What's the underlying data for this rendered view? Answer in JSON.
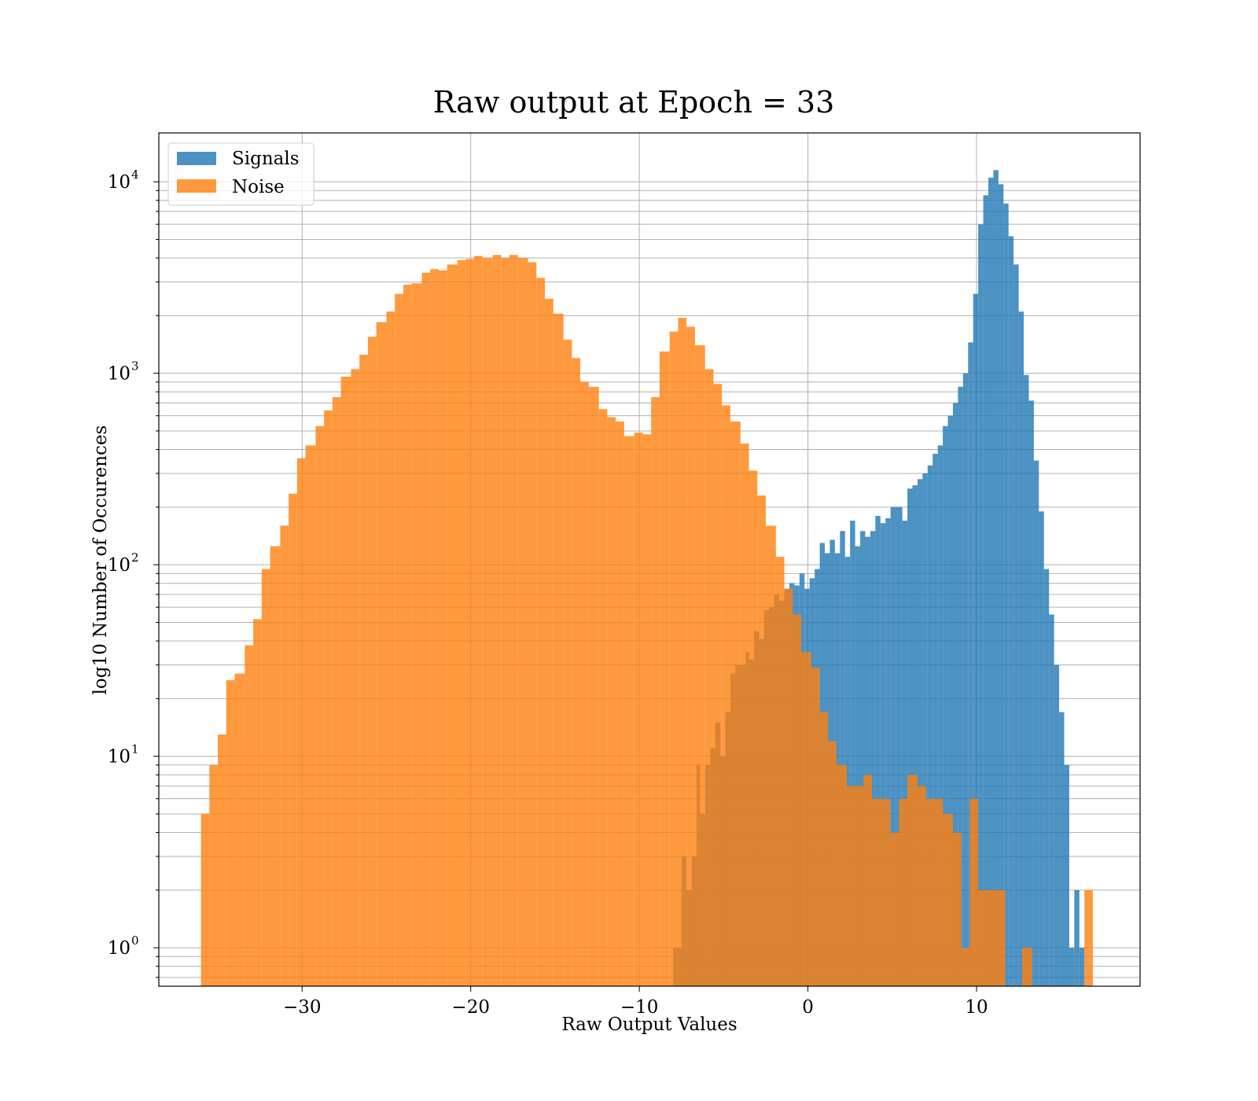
{
  "chart_data": {
    "type": "bar",
    "title": "Raw output at Epoch = 33",
    "xlabel": "Raw Output Values",
    "ylabel": "log10 Number of Occurences",
    "yscale": "log",
    "xlim": [
      -38.5,
      19.7
    ],
    "ylim": [
      0.63,
      18000
    ],
    "xticks": [
      -30,
      -20,
      -10,
      0,
      10
    ],
    "xtick_labels": [
      "−30",
      "−20",
      "−10",
      "0",
      "10"
    ],
    "yticks": [
      1,
      10,
      100,
      1000,
      10000
    ],
    "ytick_labels": [
      {
        "base": "10",
        "exp": "0"
      },
      {
        "base": "10",
        "exp": "1"
      },
      {
        "base": "10",
        "exp": "2"
      },
      {
        "base": "10",
        "exp": "3"
      },
      {
        "base": "10",
        "exp": "4"
      }
    ],
    "grid": true,
    "legend_position": "upper-left",
    "series": [
      {
        "name": "Signals",
        "color": "#1f77b4",
        "bins": [
          [
            -8.0,
            -7.5,
            1
          ],
          [
            -7.5,
            -7.2,
            3
          ],
          [
            -7.2,
            -6.9,
            2
          ],
          [
            -6.9,
            -6.6,
            3
          ],
          [
            -6.6,
            -6.4,
            9
          ],
          [
            -6.4,
            -6.1,
            5
          ],
          [
            -6.1,
            -5.8,
            9
          ],
          [
            -5.8,
            -5.5,
            11
          ],
          [
            -5.5,
            -5.2,
            15
          ],
          [
            -5.2,
            -4.9,
            10
          ],
          [
            -4.9,
            -4.6,
            17
          ],
          [
            -4.6,
            -4.3,
            27
          ],
          [
            -4.3,
            -4.0,
            30
          ],
          [
            -4.0,
            -3.7,
            30
          ],
          [
            -3.7,
            -3.5,
            35
          ],
          [
            -3.5,
            -3.2,
            32
          ],
          [
            -3.2,
            -2.9,
            45
          ],
          [
            -2.9,
            -2.6,
            41
          ],
          [
            -2.6,
            -2.3,
            58
          ],
          [
            -2.3,
            -2.0,
            60
          ],
          [
            -2.0,
            -1.7,
            70
          ],
          [
            -1.7,
            -1.4,
            65
          ],
          [
            -1.4,
            -1.1,
            75
          ],
          [
            -1.1,
            -0.8,
            80
          ],
          [
            -0.8,
            -0.5,
            78
          ],
          [
            -0.5,
            -0.2,
            90
          ],
          [
            -0.2,
            0.1,
            75
          ],
          [
            0.1,
            0.4,
            85
          ],
          [
            0.4,
            0.7,
            95
          ],
          [
            0.7,
            1.0,
            130
          ],
          [
            1.0,
            1.3,
            115
          ],
          [
            1.3,
            1.6,
            135
          ],
          [
            1.6,
            1.9,
            115
          ],
          [
            1.9,
            2.2,
            150
          ],
          [
            2.2,
            2.5,
            110
          ],
          [
            2.5,
            2.8,
            170
          ],
          [
            2.8,
            3.1,
            125
          ],
          [
            3.1,
            3.4,
            150
          ],
          [
            3.4,
            3.7,
            140
          ],
          [
            3.7,
            4.0,
            150
          ],
          [
            4.0,
            4.3,
            180
          ],
          [
            4.3,
            4.6,
            165
          ],
          [
            4.6,
            4.9,
            175
          ],
          [
            4.9,
            5.2,
            200
          ],
          [
            5.2,
            5.6,
            200
          ],
          [
            5.6,
            5.9,
            170
          ],
          [
            5.9,
            6.2,
            250
          ],
          [
            6.2,
            6.5,
            260
          ],
          [
            6.5,
            6.8,
            280
          ],
          [
            6.8,
            7.1,
            300
          ],
          [
            7.1,
            7.4,
            330
          ],
          [
            7.4,
            7.7,
            380
          ],
          [
            7.7,
            8.0,
            420
          ],
          [
            8.0,
            8.3,
            530
          ],
          [
            8.3,
            8.6,
            600
          ],
          [
            8.6,
            8.9,
            700
          ],
          [
            8.9,
            9.2,
            850
          ],
          [
            9.2,
            9.5,
            1000
          ],
          [
            9.5,
            9.8,
            1450
          ],
          [
            9.8,
            10.1,
            2600
          ],
          [
            10.1,
            10.4,
            6000
          ],
          [
            10.4,
            10.7,
            8500
          ],
          [
            10.7,
            11.0,
            10500
          ],
          [
            11.0,
            11.3,
            11500
          ],
          [
            11.3,
            11.6,
            9700
          ],
          [
            11.6,
            11.9,
            7700
          ],
          [
            11.9,
            12.2,
            5200
          ],
          [
            12.2,
            12.5,
            3700
          ],
          [
            12.5,
            12.8,
            2100
          ],
          [
            12.8,
            13.1,
            980
          ],
          [
            13.1,
            13.4,
            720
          ],
          [
            13.4,
            13.7,
            350
          ],
          [
            13.7,
            14.0,
            190
          ],
          [
            14.0,
            14.3,
            95
          ],
          [
            14.3,
            14.6,
            55
          ],
          [
            14.6,
            14.9,
            30
          ],
          [
            14.9,
            15.2,
            17
          ],
          [
            15.2,
            15.5,
            9
          ],
          [
            15.5,
            15.8,
            1
          ],
          [
            15.8,
            16.1,
            2
          ],
          [
            16.1,
            16.4,
            1
          ]
        ]
      },
      {
        "name": "Noise",
        "color": "#ff7f0e",
        "bins": [
          [
            -36.0,
            -35.5,
            5
          ],
          [
            -35.5,
            -35.0,
            9
          ],
          [
            -35.0,
            -34.5,
            13
          ],
          [
            -34.5,
            -34.0,
            25
          ],
          [
            -34.0,
            -33.4,
            27
          ],
          [
            -33.4,
            -32.9,
            38
          ],
          [
            -32.9,
            -32.4,
            52
          ],
          [
            -32.4,
            -31.9,
            95
          ],
          [
            -31.9,
            -31.3,
            125
          ],
          [
            -31.3,
            -30.8,
            160
          ],
          [
            -30.8,
            -30.3,
            235
          ],
          [
            -30.3,
            -29.8,
            360
          ],
          [
            -29.8,
            -29.2,
            420
          ],
          [
            -29.2,
            -28.7,
            530
          ],
          [
            -28.7,
            -28.2,
            640
          ],
          [
            -28.2,
            -27.7,
            750
          ],
          [
            -27.7,
            -27.1,
            960
          ],
          [
            -27.1,
            -26.6,
            1050
          ],
          [
            -26.6,
            -26.1,
            1250
          ],
          [
            -26.1,
            -25.6,
            1550
          ],
          [
            -25.6,
            -25.0,
            1850
          ],
          [
            -25.0,
            -24.5,
            2100
          ],
          [
            -24.5,
            -24.0,
            2600
          ],
          [
            -24.0,
            -23.5,
            2900
          ],
          [
            -23.5,
            -22.9,
            2950
          ],
          [
            -22.9,
            -22.4,
            3350
          ],
          [
            -22.4,
            -21.9,
            3500
          ],
          [
            -21.9,
            -21.4,
            3450
          ],
          [
            -21.4,
            -20.8,
            3700
          ],
          [
            -20.8,
            -20.3,
            3900
          ],
          [
            -20.3,
            -19.8,
            3950
          ],
          [
            -19.8,
            -19.3,
            4100
          ],
          [
            -19.3,
            -18.7,
            4000
          ],
          [
            -18.7,
            -18.2,
            4150
          ],
          [
            -18.2,
            -17.7,
            4000
          ],
          [
            -17.7,
            -17.2,
            4150
          ],
          [
            -17.2,
            -16.6,
            4000
          ],
          [
            -16.6,
            -16.1,
            3800
          ],
          [
            -16.1,
            -15.6,
            3150
          ],
          [
            -15.6,
            -15.1,
            2450
          ],
          [
            -15.1,
            -14.5,
            2050
          ],
          [
            -14.5,
            -14.0,
            1500
          ],
          [
            -14.0,
            -13.5,
            1200
          ],
          [
            -13.5,
            -13.0,
            900
          ],
          [
            -13.0,
            -12.4,
            850
          ],
          [
            -12.4,
            -11.9,
            650
          ],
          [
            -11.9,
            -11.4,
            590
          ],
          [
            -11.4,
            -10.9,
            560
          ],
          [
            -10.9,
            -10.3,
            470
          ],
          [
            -10.3,
            -9.8,
            490
          ],
          [
            -9.8,
            -9.3,
            480
          ],
          [
            -9.3,
            -8.8,
            750
          ],
          [
            -8.8,
            -8.2,
            1300
          ],
          [
            -8.2,
            -7.7,
            1650
          ],
          [
            -7.7,
            -7.2,
            1950
          ],
          [
            -7.2,
            -6.7,
            1750
          ],
          [
            -6.7,
            -6.1,
            1400
          ],
          [
            -6.1,
            -5.6,
            1050
          ],
          [
            -5.6,
            -5.1,
            880
          ],
          [
            -5.1,
            -4.6,
            680
          ],
          [
            -4.6,
            -4.0,
            560
          ],
          [
            -4.0,
            -3.5,
            430
          ],
          [
            -3.5,
            -3.0,
            310
          ],
          [
            -3.0,
            -2.5,
            230
          ],
          [
            -2.5,
            -1.9,
            160
          ],
          [
            -1.9,
            -1.4,
            110
          ],
          [
            -1.4,
            -0.9,
            75
          ],
          [
            -0.9,
            -0.4,
            55
          ],
          [
            -0.4,
            0.2,
            35
          ],
          [
            0.2,
            0.7,
            29
          ],
          [
            0.7,
            1.2,
            17
          ],
          [
            1.2,
            1.7,
            12
          ],
          [
            1.7,
            2.3,
            9
          ],
          [
            2.3,
            2.8,
            7
          ],
          [
            2.8,
            3.3,
            7
          ],
          [
            3.3,
            3.8,
            8
          ],
          [
            3.8,
            4.4,
            6
          ],
          [
            4.4,
            4.9,
            6
          ],
          [
            4.9,
            5.4,
            4
          ],
          [
            5.4,
            5.9,
            6
          ],
          [
            5.9,
            6.5,
            8
          ],
          [
            6.5,
            7.0,
            7
          ],
          [
            7.0,
            7.5,
            6
          ],
          [
            7.5,
            8.0,
            6
          ],
          [
            8.0,
            8.6,
            5
          ],
          [
            8.6,
            9.1,
            4
          ],
          [
            9.1,
            9.6,
            1
          ],
          [
            9.6,
            10.1,
            6
          ],
          [
            10.1,
            10.7,
            2
          ],
          [
            10.7,
            11.2,
            2
          ],
          [
            11.2,
            11.7,
            2
          ],
          [
            12.7,
            13.3,
            1
          ],
          [
            16.4,
            16.9,
            2
          ]
        ]
      }
    ]
  }
}
